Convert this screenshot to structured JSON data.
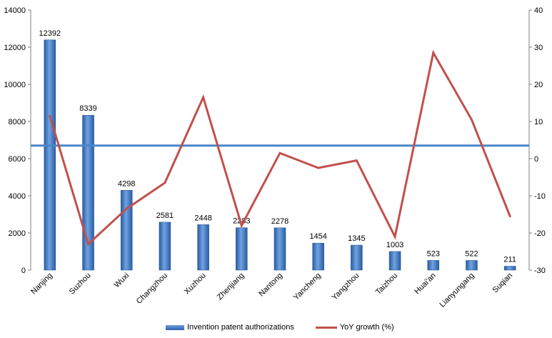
{
  "chart_data": {
    "type": "bar",
    "categories": [
      "Nanjing",
      "Suzhou",
      "Wuxi",
      "Changzhou",
      "Xuzhou",
      "Zhenjiang",
      "Nantong",
      "Yancheng",
      "Yangzhou",
      "Taizhou",
      "Huai'an",
      "Lianyungang",
      "Suqian"
    ],
    "series": [
      {
        "name": "Invention patent authorizations",
        "type": "bar",
        "axis": "left",
        "color": "#3b73c0",
        "values": [
          12392,
          8339,
          4298,
          2581,
          2448,
          2283,
          2278,
          1454,
          1345,
          1003,
          523,
          522,
          211
        ],
        "labels": [
          "12392",
          "8339",
          "4298",
          "2581",
          "2448",
          "2283",
          "2278",
          "1454",
          "1345",
          "1003",
          "523",
          "522",
          "211"
        ]
      },
      {
        "name": "YoY growth (%)",
        "type": "line",
        "axis": "right",
        "color": "#c0504d",
        "values": [
          11.5,
          -23.0,
          -13.5,
          -6.5,
          16.5,
          -18.0,
          1.5,
          -2.5,
          -0.5,
          -21.0,
          28.5,
          10.5,
          -15.5
        ]
      }
    ],
    "reference_line": {
      "axis": "right",
      "value": 3.5,
      "color": "#4a86c8"
    },
    "y_left": {
      "min": 0,
      "max": 14000,
      "step": 2000,
      "ticks": [
        "0",
        "2000",
        "4000",
        "6000",
        "8000",
        "10000",
        "12000",
        "14000"
      ]
    },
    "y_right": {
      "min": -30,
      "max": 40,
      "step": 10,
      "ticks": [
        "-30",
        "-20",
        "-10",
        "0",
        "10",
        "20",
        "30",
        "40"
      ]
    },
    "legend": {
      "placement": "bottom",
      "bar_label": "Invention patent authorizations",
      "line_label": "YoY growth (%)"
    },
    "grid": false
  }
}
